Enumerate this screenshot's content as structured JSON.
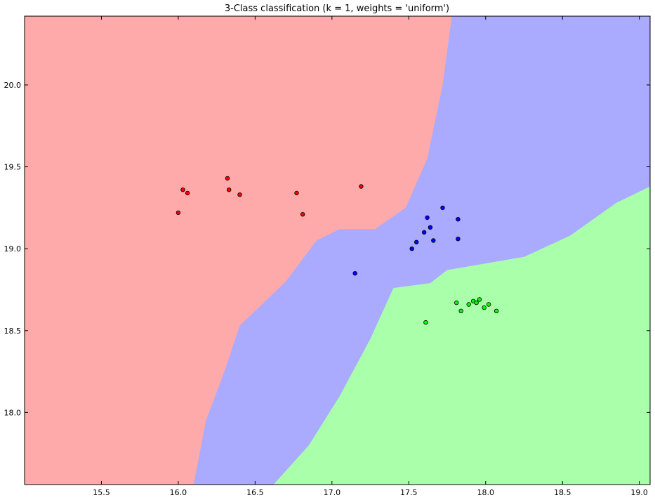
{
  "chart_data": {
    "type": "scatter",
    "title": "3-Class classification (k = 1, weights = 'uniform')",
    "xlabel": "",
    "ylabel": "",
    "xlim": [
      15.0,
      19.07
    ],
    "ylim": [
      17.56,
      20.42
    ],
    "grid": false,
    "legend": "none",
    "x_ticks": [
      15.5,
      16.0,
      16.5,
      17.0,
      17.5,
      18.0,
      18.5,
      19.0
    ],
    "x_tick_labels": [
      "15.5",
      "16.0",
      "16.5",
      "17.0",
      "17.5",
      "18.0",
      "18.5",
      "19.0"
    ],
    "y_ticks": [
      18.0,
      18.5,
      19.0,
      19.5,
      20.0
    ],
    "y_tick_labels": [
      "18.0",
      "18.5",
      "19.0",
      "19.5",
      "20.0"
    ],
    "regions": {
      "red_blue_boundary": [
        [
          16.1,
          17.56
        ],
        [
          16.18,
          17.95
        ],
        [
          16.3,
          18.25
        ],
        [
          16.4,
          18.53
        ],
        [
          16.7,
          18.8
        ],
        [
          16.9,
          19.05
        ],
        [
          17.05,
          19.12
        ],
        [
          17.28,
          19.12
        ],
        [
          17.48,
          19.25
        ],
        [
          17.62,
          19.55
        ],
        [
          17.72,
          20.0
        ],
        [
          17.78,
          20.42
        ]
      ],
      "blue_green_boundary": [
        [
          16.62,
          17.56
        ],
        [
          16.85,
          17.8
        ],
        [
          17.05,
          18.1
        ],
        [
          17.25,
          18.45
        ],
        [
          17.4,
          18.76
        ],
        [
          17.64,
          18.79
        ],
        [
          17.75,
          18.87
        ],
        [
          18.25,
          18.95
        ],
        [
          18.55,
          19.08
        ],
        [
          18.85,
          19.28
        ],
        [
          19.07,
          19.38
        ]
      ]
    },
    "series": [
      {
        "class": "red",
        "color": "#ff0000",
        "points": [
          [
            16.0,
            19.22
          ],
          [
            16.03,
            19.36
          ],
          [
            16.06,
            19.34
          ],
          [
            16.32,
            19.43
          ],
          [
            16.33,
            19.36
          ],
          [
            16.4,
            19.33
          ],
          [
            16.77,
            19.34
          ],
          [
            16.81,
            19.21
          ],
          [
            17.19,
            19.38
          ]
        ]
      },
      {
        "class": "blue",
        "color": "#0000ff",
        "points": [
          [
            17.15,
            18.85
          ],
          [
            17.52,
            19.0
          ],
          [
            17.55,
            19.04
          ],
          [
            17.6,
            19.1
          ],
          [
            17.62,
            19.19
          ],
          [
            17.64,
            19.13
          ],
          [
            17.66,
            19.05
          ],
          [
            17.72,
            19.25
          ],
          [
            17.82,
            19.18
          ],
          [
            17.82,
            19.06
          ]
        ]
      },
      {
        "class": "green",
        "color": "#00ff00",
        "points": [
          [
            17.61,
            18.55
          ],
          [
            17.81,
            18.67
          ],
          [
            17.84,
            18.62
          ],
          [
            17.89,
            18.66
          ],
          [
            17.92,
            18.68
          ],
          [
            17.94,
            18.67
          ],
          [
            17.96,
            18.69
          ],
          [
            17.99,
            18.64
          ],
          [
            18.02,
            18.66
          ],
          [
            18.07,
            18.62
          ]
        ]
      }
    ],
    "colors": {
      "region_red": "#ffaaaa",
      "region_blue": "#aaaaff",
      "region_green": "#aaffaa",
      "frame": "#000000"
    }
  }
}
